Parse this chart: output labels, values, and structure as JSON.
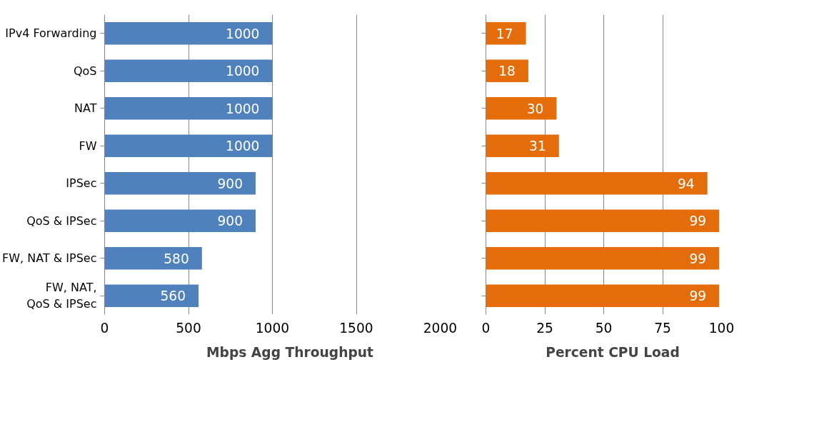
{
  "chart_data": [
    {
      "type": "bar",
      "orientation": "horizontal",
      "categories": [
        "IPv4 Forwarding",
        "QoS",
        "NAT",
        "FW",
        "IPSec",
        "QoS & IPSec",
        "FW, NAT & IPSec",
        "FW, NAT,\nQoS & IPSec"
      ],
      "series": [
        {
          "name": "Mbps Agg Throughput",
          "color": "#4f81bd",
          "values": [
            1000,
            1000,
            1000,
            1000,
            900,
            900,
            580,
            560
          ]
        }
      ],
      "xlim": [
        0,
        2000
      ],
      "xticks": [
        0,
        500,
        1000,
        1500,
        2000
      ],
      "grid": "x",
      "legend": "bottom",
      "data_labels": true
    },
    {
      "type": "bar",
      "orientation": "horizontal",
      "categories": [
        null,
        null,
        null,
        null,
        null,
        null,
        null,
        null
      ],
      "series": [
        {
          "name": "Percent CPU Load",
          "color": "#e46c0a",
          "values": [
            17,
            18,
            30,
            31,
            94,
            99,
            99,
            99
          ]
        }
      ],
      "xlim": [
        0,
        100
      ],
      "xticks": [
        0,
        25,
        50,
        75,
        100
      ],
      "grid": "x",
      "legend": "bottom",
      "data_labels": true
    }
  ]
}
